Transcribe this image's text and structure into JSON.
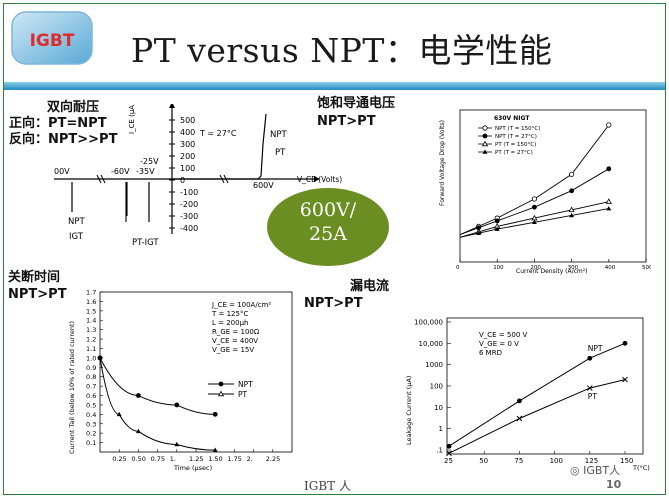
{
  "header": {
    "logo_text": "IGBT",
    "title": "PT versus NPT：电学性能"
  },
  "sections": {
    "bidirectional_title": "双向耐压",
    "forward_label": "正向：PT=NPT",
    "reverse_label": "反向：NPT>>PT",
    "saturation_title": "饱和导通电压",
    "saturation_result": "NPT>PT",
    "turnoff_title": "关断时间",
    "turnoff_result": "NPT>PT",
    "leakage_title": "漏电流",
    "leakage_result": "NPT>PT"
  },
  "badge": {
    "line1": "600V/",
    "line2": "25A",
    "color": "#6b8e23"
  },
  "footer": {
    "brand": "IGBT 人",
    "page": "10",
    "watermark": "IGBT人"
  },
  "chart_data": [
    {
      "id": "blocking-voltage",
      "type": "line",
      "title": "",
      "xlabel": "V_CE (Volts)",
      "ylabel": "I_CE (µA)",
      "annotation": "T = 27°C",
      "y_ticks": [
        "500",
        "400",
        "300",
        "200",
        "100",
        "0",
        "-100",
        "-200",
        "-300",
        "-400"
      ],
      "x_ticks": [
        "-600V",
        "-60V",
        "-35V",
        "-25V",
        "600V"
      ],
      "series": [
        {
          "name": "NPT",
          "label": "NPT"
        },
        {
          "name": "PT",
          "label": "PT"
        },
        {
          "name": "NPT",
          "label": "NPT",
          "note": "IGT"
        },
        {
          "name": "PT-IGT",
          "label": "PT-IGT"
        }
      ]
    },
    {
      "id": "forward-voltage-drop",
      "type": "line",
      "title": "630V NIGT",
      "xlabel": "Current Density (A/cm²)",
      "ylabel": "Forward Voltage Drop (Volts)",
      "xlim": [
        0,
        500
      ],
      "x_ticks": [
        "0",
        "100",
        "200",
        "300",
        "400",
        "500"
      ],
      "series": [
        {
          "name": "NPT (T = 150°C)",
          "x": [
            0,
            50,
            100,
            200,
            300,
            400
          ],
          "y": [
            1.0,
            1.3,
            1.6,
            2.3,
            3.2,
            5.0
          ]
        },
        {
          "name": "NPT (T = 27°C)",
          "x": [
            0,
            50,
            100,
            200,
            300,
            400
          ],
          "y": [
            1.0,
            1.25,
            1.5,
            2.0,
            2.6,
            3.4
          ]
        },
        {
          "name": "PT (T = 150°C)",
          "x": [
            0,
            50,
            100,
            200,
            300,
            400
          ],
          "y": [
            0.9,
            1.1,
            1.3,
            1.6,
            1.9,
            2.2
          ]
        },
        {
          "name": "PT (T = 27°C)",
          "x": [
            0,
            50,
            100,
            200,
            300,
            400
          ],
          "y": [
            0.9,
            1.05,
            1.2,
            1.45,
            1.7,
            1.95
          ]
        }
      ]
    },
    {
      "id": "current-tail",
      "type": "line",
      "title": "",
      "xlabel": "Time (µsec)",
      "ylabel": "Current Tail (below 10% of rated current)",
      "xlim": [
        0,
        2.5
      ],
      "ylim": [
        0,
        1.7
      ],
      "x_ticks": [
        "0.25",
        "0.50",
        "0.75",
        "1.",
        "1.25",
        "1.50",
        "1.75",
        "2.",
        "2.25"
      ],
      "y_ticks": [
        "1.7",
        "1.6",
        "1.5",
        "1.4",
        "1.3",
        "1.2",
        "1.1",
        "1.0",
        "0.9",
        "0.8",
        "0.7",
        "0.6",
        "0.5",
        "0.4",
        "0.3",
        "0.2",
        "0.1"
      ],
      "conditions": [
        "J_CE = 100A/cm²",
        "T = 125°C",
        "L = 200µh",
        "R_GE = 100Ω",
        "V_CE = 400V",
        "V_GE = 15V"
      ],
      "series": [
        {
          "name": "NPT",
          "x": [
            0,
            0.5,
            1.0,
            1.5
          ],
          "y": [
            1.0,
            0.6,
            0.5,
            0.4
          ]
        },
        {
          "name": "PT",
          "x": [
            0,
            0.25,
            0.5,
            1.0,
            1.5
          ],
          "y": [
            1.0,
            0.4,
            0.22,
            0.08,
            0.02
          ]
        }
      ]
    },
    {
      "id": "leakage-current",
      "type": "line",
      "title": "",
      "xlabel": "T(°C)",
      "ylabel": "Leakage Current (µA)",
      "y_scale": "log",
      "x_ticks": [
        "25",
        "50",
        "75",
        "100",
        "125",
        "150"
      ],
      "y_ticks": [
        "100,000",
        "10,000",
        "1000",
        "100",
        "10",
        "1",
        ".1"
      ],
      "conditions": [
        "V_CE = 500 V",
        "V_GE = 0 V",
        "6 MRD"
      ],
      "series": [
        {
          "name": "NPT",
          "x": [
            25,
            75,
            125,
            150
          ],
          "y": [
            0.15,
            20,
            2000,
            10000
          ]
        },
        {
          "name": "PT",
          "x": [
            25,
            75,
            125,
            150
          ],
          "y": [
            0.07,
            3,
            80,
            200
          ]
        }
      ]
    }
  ]
}
